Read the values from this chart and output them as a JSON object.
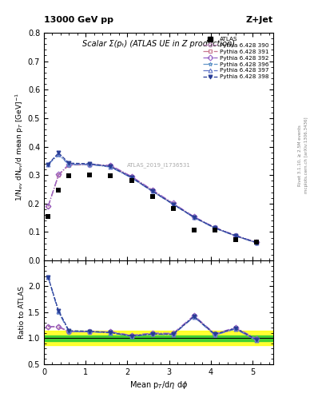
{
  "title_left": "13000 GeV pp",
  "title_right": "Z+Jet",
  "plot_title": "Scalar Σ(pₜ) (ATLAS UE in Z production)",
  "watermark": "ATLAS_2019_I1736531",
  "ylabel_main": "1/N$_{ev}$ dN$_{ev}$/d mean p$_T$ [GeV]$^{-1}$",
  "ylabel_ratio": "Ratio to ATLAS",
  "xlabel": "Mean p$_T$/d$\\eta$ d$\\phi$",
  "right_label": "Rivet 3.1.10, ≥ 2.5M events",
  "right_label2": "mcplots.cern.ch [arXiv:1306.3436]",
  "xlim": [
    0,
    5.5
  ],
  "ylim_main": [
    0,
    0.8
  ],
  "ylim_ratio": [
    0.5,
    2.5
  ],
  "atlas_x": [
    0.1,
    0.35,
    0.6,
    1.1,
    1.6,
    2.1,
    2.6,
    3.1,
    3.6,
    4.1,
    4.6,
    5.1
  ],
  "atlas_y": [
    0.155,
    0.247,
    0.299,
    0.3,
    0.298,
    0.28,
    0.226,
    0.184,
    0.107,
    0.107,
    0.073,
    0.065
  ],
  "pythia_x": [
    0.1,
    0.35,
    0.6,
    1.1,
    1.6,
    2.1,
    2.6,
    3.1,
    3.6,
    4.1,
    4.6,
    5.1
  ],
  "pythia390_y": [
    0.19,
    0.3,
    0.338,
    0.337,
    0.334,
    0.295,
    0.247,
    0.2,
    0.153,
    0.115,
    0.087,
    0.063
  ],
  "pythia391_y": [
    0.19,
    0.3,
    0.335,
    0.336,
    0.333,
    0.294,
    0.246,
    0.199,
    0.152,
    0.114,
    0.086,
    0.062
  ],
  "pythia392_y": [
    0.19,
    0.302,
    0.338,
    0.337,
    0.334,
    0.295,
    0.248,
    0.201,
    0.154,
    0.116,
    0.088,
    0.064
  ],
  "pythia396_y": [
    0.338,
    0.37,
    0.337,
    0.337,
    0.328,
    0.29,
    0.243,
    0.197,
    0.151,
    0.113,
    0.086,
    0.062
  ],
  "pythia397_y": [
    0.338,
    0.373,
    0.338,
    0.338,
    0.329,
    0.291,
    0.243,
    0.197,
    0.151,
    0.114,
    0.086,
    0.062
  ],
  "pythia398_y": [
    0.338,
    0.378,
    0.342,
    0.34,
    0.33,
    0.292,
    0.244,
    0.198,
    0.152,
    0.115,
    0.087,
    0.063
  ],
  "colors": {
    "390": "#c896c8",
    "391": "#c87890",
    "392": "#9664c8",
    "396": "#6496c8",
    "397": "#6478c8",
    "398": "#283c96"
  },
  "markers": {
    "390": "o",
    "391": "s",
    "392": "D",
    "396": "*",
    "397": "^",
    "398": "v"
  },
  "linestyles": {
    "390": "-.",
    "391": "-.",
    "392": "-.",
    "396": "-.",
    "397": "-.",
    "398": "--"
  },
  "green_band": [
    0.95,
    1.05
  ],
  "yellow_band": [
    0.87,
    1.15
  ],
  "xticks": [
    0,
    1,
    2,
    3,
    4,
    5
  ],
  "yticks_main": [
    0.0,
    0.1,
    0.2,
    0.3,
    0.4,
    0.5,
    0.6,
    0.7,
    0.8
  ],
  "yticks_ratio": [
    0.5,
    1.0,
    1.5,
    2.0
  ]
}
